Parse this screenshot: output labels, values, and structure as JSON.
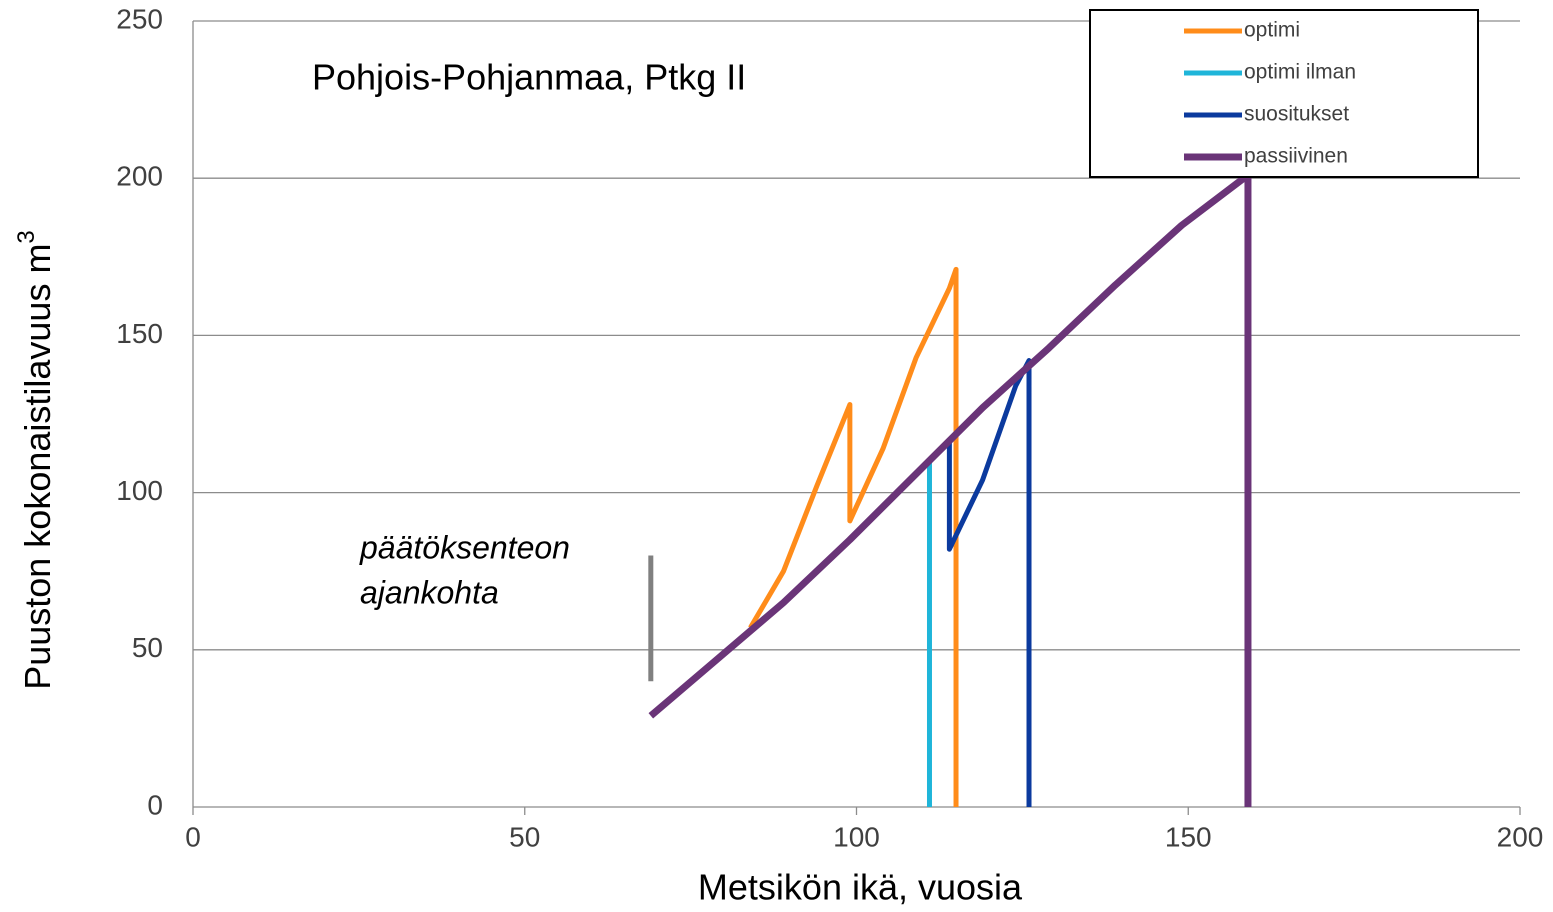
{
  "chart_data": {
    "type": "line",
    "annotation": "Pohjois-Pohjanmaa, Ptkg II",
    "xlabel": "Metsikön ikä, vuosia",
    "ylabel": "Puuston kokonaistilavuus  m",
    "ylabel_sup": "3",
    "note_lines": [
      "päätöksenteon",
      "ajankohta"
    ],
    "note_marker": {
      "color": "#808080",
      "x": [
        69,
        69
      ],
      "values": [
        40,
        80
      ]
    },
    "xlim": [
      0,
      200
    ],
    "xticks": [
      0,
      50,
      100,
      150,
      200
    ],
    "ylim": [
      0,
      250
    ],
    "yticks": [
      0,
      50,
      100,
      150,
      200,
      250
    ],
    "grid": true,
    "legend": "upper right",
    "series": [
      {
        "name": "optimi",
        "color": "#ff8c1a",
        "x": [
          84,
          89,
          94,
          99,
          99,
          104,
          109,
          114,
          115,
          115
        ],
        "values": [
          57,
          75,
          102,
          128,
          91,
          114,
          143,
          165,
          171,
          0
        ]
      },
      {
        "name": "optimi ilman",
        "color": "#1fb5d9",
        "x": [
          109,
          111,
          111
        ],
        "values": [
          106,
          110,
          0
        ]
      },
      {
        "name": "suositukset",
        "color": "#0b3a9e",
        "x": [
          111,
          114,
          114,
          119,
          124,
          126,
          126
        ],
        "values": [
          110,
          116,
          82,
          104,
          134,
          142,
          0
        ]
      },
      {
        "name": "passiivinen",
        "color": "#6a3478",
        "x": [
          69,
          79,
          89,
          99,
          109,
          119,
          129,
          139,
          149,
          159,
          159
        ],
        "values": [
          29,
          47,
          65,
          85,
          106,
          127,
          146,
          166,
          185,
          201,
          0
        ]
      }
    ]
  }
}
